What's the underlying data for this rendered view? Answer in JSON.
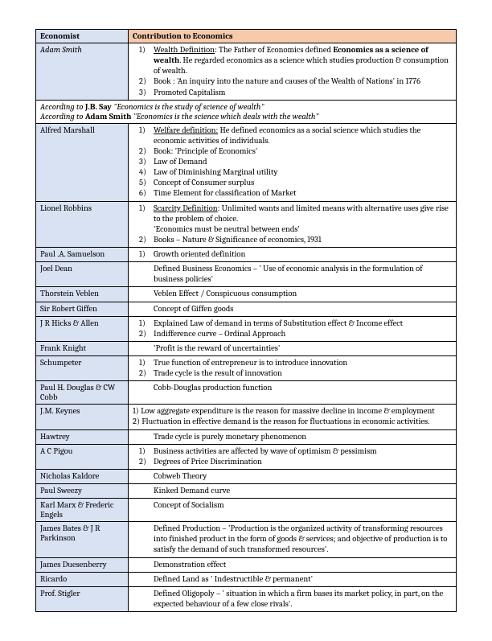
{
  "header": {
    "economist": "Economist",
    "contribution": "Contribution to Economics"
  },
  "rows": [
    {
      "type": "row",
      "name": "Adam Smith",
      "nameItalic": true,
      "items": [
        "<span class='u'>Wealth Definition</span>: The Father of Economics defined <b>Economics as a science of wealth</b>. He regarded economics as a science which studies production &amp; consumption of wealth.",
        "Book : 'An inquiry into the nature and causes of the Wealth of Nations' in 1776",
        "Promoted Capitalism"
      ]
    },
    {
      "type": "span",
      "html": "According to <b>J.B. Say</b> <i>\"Economics is the study of science of wealth\"</i><br>According to <b>Adam Smith</b> <i>\"Economics is the science which deals with the wealth\"</i>"
    },
    {
      "type": "row",
      "name": "Alfred Marshall",
      "items": [
        "<span class='u'>Welfare definition:</span> He defined economics as a social science which studies the economic activities of individuals.",
        "Book: 'Principle of Economics'",
        "Law of Demand",
        "Law of Diminishing Marginal utility",
        "Concept of Consumer surplus",
        "Time Element for classification of Market"
      ]
    },
    {
      "type": "row",
      "name": "Lionel Robbins",
      "items": [
        "<span class='u'>Scarcity Definition</span>: Unlimited wants and limited means with alternative uses give rise to the problem of choice.<br>'Economics must be neutral between ends'",
        "Books – Nature &amp; Significance of economics, 1931"
      ]
    },
    {
      "type": "row",
      "name": "Paul .A. Samuelson",
      "items": [
        "Growth oriented definition"
      ]
    },
    {
      "type": "row",
      "name": "Joel Dean",
      "plain": "Defined Business Economics – ' Use of economic analysis in the formulation of business policies'"
    },
    {
      "type": "row",
      "name": "Thorstein Veblen",
      "plain": "Veblen Effect / Conspicuous consumption"
    },
    {
      "type": "row",
      "name": "Sir Robert Giffen",
      "plain": "Concept of Giffen goods"
    },
    {
      "type": "row",
      "name": "J R Hicks & Allen",
      "items": [
        "Explained Law of demand in terms of Substitution effect &amp; Income effect",
        "Indifference curve – Ordinal Approach"
      ]
    },
    {
      "type": "row",
      "name": "Frank Knight",
      "plain": "'Profit is the reward of uncertainties'"
    },
    {
      "type": "row",
      "name": "Schumpeter",
      "items": [
        "True function of entrepreneur is to introduce innovation",
        "Trade cycle is the result of innovation"
      ]
    },
    {
      "type": "row",
      "name": "Paul H. Douglas & CW Cobb",
      "plain": "Cobb-Douglas production function"
    },
    {
      "type": "row",
      "name": "J.M. Keynes",
      "plainNoIndent": "1) Low aggregate expenditure is the reason for massive decline in income &amp; employment<br>2) Fluctuation in effective demand is the reason for fluctuations in economic activities."
    },
    {
      "type": "row",
      "name": "Hawtrey",
      "plain": "Trade cycle is purely monetary phenomenon"
    },
    {
      "type": "row",
      "name": "A C Pigou",
      "items": [
        "Business activities are affected by wave of optimism &amp; pessimism",
        "Degrees of Price Discrimination"
      ]
    },
    {
      "type": "row",
      "name": "Nicholas Kaldore",
      "plain": "Cobweb Theory"
    },
    {
      "type": "row",
      "name": "Paul Sweezy",
      "plain": "Kinked Demand curve"
    },
    {
      "type": "row",
      "name": "Karl Marx & Frederic Engels",
      "plain": "Concept of Socialism"
    },
    {
      "type": "row",
      "name": "James Bates & J R Parkinson",
      "plain": "Defined Production – 'Production is the organized activity of transforming resources into finished product in the form of goods &amp; services; and objective of production is to satisfy the demand of such transformed resources'."
    },
    {
      "type": "row",
      "name": "James Duesenberry",
      "plain": "Demonstration effect"
    },
    {
      "type": "row",
      "name": "Ricardo",
      "plain": "Defined Land as ' Indestructible &amp; permanent'"
    },
    {
      "type": "row",
      "name": "Prof. Stigler",
      "plain": "Defined Oligopoly – ' situation in which a firm bases its market policy, in part, on the expected behaviour of a few close rivals'."
    }
  ],
  "colors": {
    "name_bg": "#d9e2f3",
    "contrib_header_bg": "#f7caac",
    "border": "#000000",
    "page_bg": "#ffffff",
    "text": "#000000"
  },
  "fonts": {
    "family": "Cambria, Georgia, serif",
    "size_pt": 10.5
  }
}
